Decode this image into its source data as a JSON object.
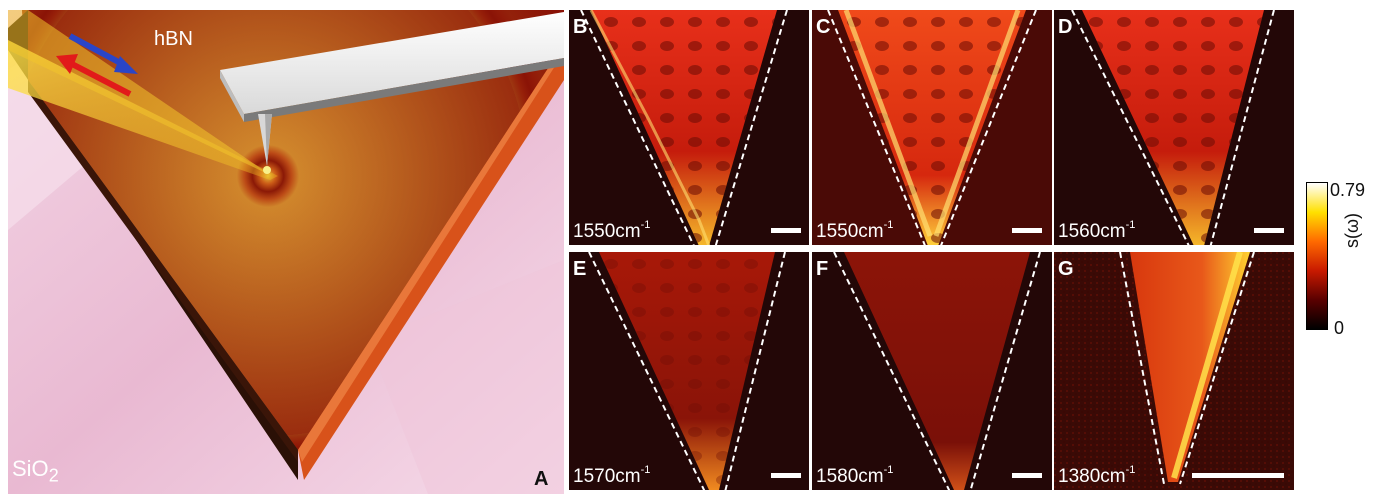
{
  "panel_a": {
    "letter": "A",
    "material_top": "hBN",
    "substrate": "SiO",
    "substrate_sub": "2"
  },
  "panels": [
    {
      "letter": "B",
      "wavenumber": "1550cm",
      "exp": "-1"
    },
    {
      "letter": "C",
      "wavenumber": "1550cm",
      "exp": "-1"
    },
    {
      "letter": "D",
      "wavenumber": "1560cm",
      "exp": "-1"
    },
    {
      "letter": "E",
      "wavenumber": "1570cm",
      "exp": "-1"
    },
    {
      "letter": "F",
      "wavenumber": "1580cm",
      "exp": "-1"
    },
    {
      "letter": "G",
      "wavenumber": "1380cm",
      "exp": "-1"
    }
  ],
  "colorbar": {
    "max_label": "0.79",
    "min_label": "0",
    "axis_label": "s(ω)",
    "colors": [
      "#000000",
      "#5a0000",
      "#c81a00",
      "#ff6a00",
      "#ffe000",
      "#ffffff"
    ]
  }
}
